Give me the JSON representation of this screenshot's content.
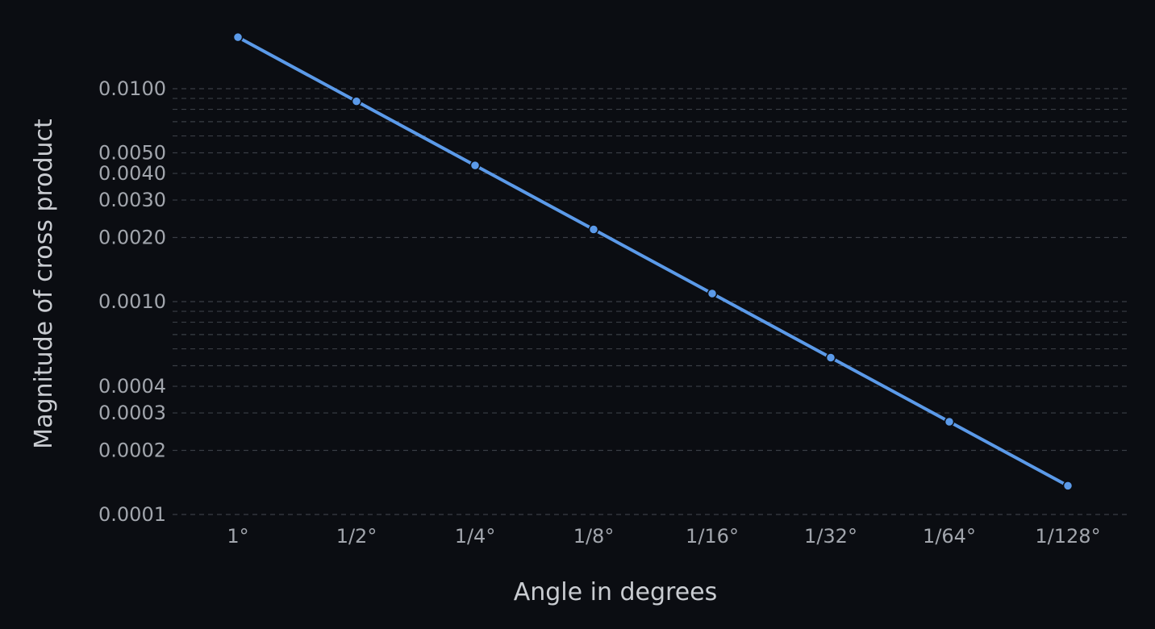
{
  "chart_data": {
    "type": "line",
    "xlabel": "Angle in degrees",
    "ylabel": "Magnitude of cross product",
    "y_scale": "log",
    "x_scale": "log2",
    "ylim": [
      0.0001,
      0.02
    ],
    "grid": "horizontal dashed",
    "x_ticks": [
      "1°",
      "1/2°",
      "1/4°",
      "1/8°",
      "1/16°",
      "1/32°",
      "1/64°",
      "1/128°"
    ],
    "y_ticks": [
      "0.0100",
      "0.0050",
      "0.0040",
      "0.0030",
      "0.0020",
      "0.0010",
      "0.0004",
      "0.0003",
      "0.0002",
      "0.0001"
    ],
    "colors": {
      "line": "#5b9ae9",
      "background": "#0b0d12",
      "grid": "#3a3e45",
      "text": "#a2a6ad"
    },
    "series": [
      {
        "x": [
          1,
          0.5,
          0.25,
          0.125,
          0.0625,
          0.03125,
          0.015625,
          0.0078125
        ],
        "values": [
          0.01745,
          0.008727,
          0.004363,
          0.002182,
          0.001091,
          0.0005454,
          0.0002727,
          0.0001364
        ]
      }
    ]
  }
}
